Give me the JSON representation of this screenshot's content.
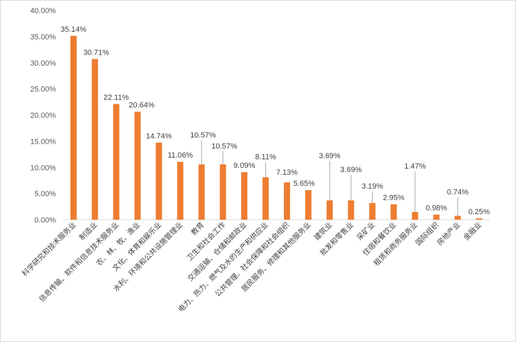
{
  "chart_data": {
    "type": "bar",
    "categories": [
      "科学研究和技术服务业",
      "制造业",
      "信息传输、软件和信息技术服务业",
      "农、林、牧、渔业",
      "文化、体育和娱乐业",
      "水利、环境和公共设施管理业",
      "教育",
      "卫生和社会工作",
      "交通运输、仓储和邮政业",
      "电力、热力、燃气及水的生产和供应业",
      "公共管理、社会保障和社会组织",
      "居民服务、修理和其他服务业",
      "建筑业",
      "批发和零售业",
      "采矿业",
      "住宿和餐饮业",
      "租赁和商务服务业",
      "国际组织",
      "房地产业",
      "金融业"
    ],
    "values": [
      35.14,
      30.71,
      22.11,
      20.64,
      14.74,
      11.06,
      10.57,
      10.57,
      9.09,
      8.11,
      7.13,
      5.65,
      3.69,
      3.69,
      3.19,
      2.95,
      1.47,
      0.98,
      0.74,
      0.25
    ],
    "data_labels": [
      "35.14%",
      "30.71%",
      "22.11%",
      "20.64%",
      "14.74%",
      "11.06%",
      "10.57%",
      "10.57%",
      "9.09%",
      "8.11%",
      "7.13%",
      "5.65%",
      "3.69%",
      "3.69%",
      "3.19%",
      "2.95%",
      "1.47%",
      "0.98%",
      "0.74%",
      "0.25%"
    ],
    "yticks": [
      "0.00%",
      "5.00%",
      "10.00%",
      "15.00%",
      "20.00%",
      "25.00%",
      "30.00%",
      "35.00%",
      "40.00%"
    ],
    "ylim": [
      0,
      40
    ],
    "grid": false,
    "legend": "none",
    "bar_color": "#ED7D31",
    "axis_color": "#d9d9d9",
    "leader_color": "#a6a6a6"
  }
}
